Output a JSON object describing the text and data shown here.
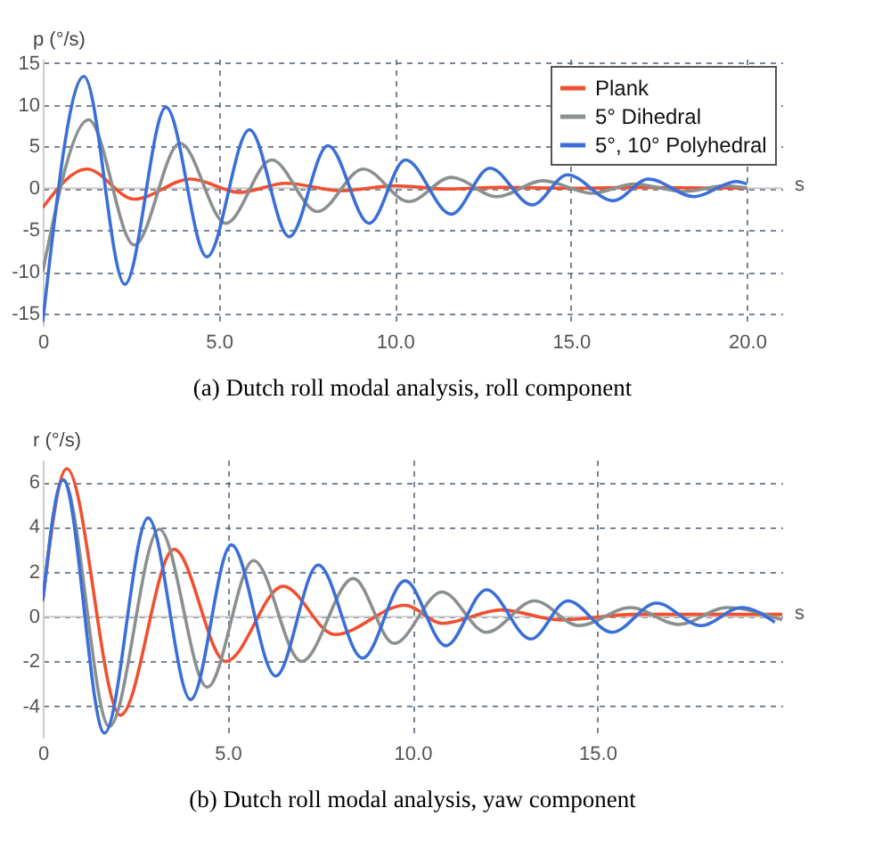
{
  "chart_data": [
    {
      "type": "line",
      "title": "(a) Dutch roll modal analysis, roll component",
      "xlabel": "s",
      "ylabel": "p (°/s)",
      "xlim": [
        0,
        21
      ],
      "xticks": [
        0,
        {
          "value": 5,
          "label": "5.0"
        },
        {
          "value": 10,
          "label": "10.0"
        },
        {
          "value": 15,
          "label": "15.0"
        },
        {
          "value": 20,
          "label": "20.0"
        }
      ],
      "ylim": [
        -16.5,
        15.5
      ],
      "yticks": [
        -15,
        -10,
        -5,
        0,
        5,
        10,
        15
      ],
      "grid": true,
      "legend": "top right",
      "series": [
        {
          "name": "Plank",
          "color": "#f05030",
          "x": [
            0,
            1.25,
            2.6,
            4.2,
            5.6,
            6.9,
            8.5,
            10,
            11.5,
            13,
            15,
            17,
            20
          ],
          "values": [
            -2.3,
            2.3,
            -1.3,
            1.1,
            -0.5,
            0.6,
            -0.3,
            0.3,
            -0.1,
            0.1,
            0,
            0.1,
            0
          ]
        },
        {
          "name": "5° Dihedral",
          "color": "#8a9090",
          "x": [
            0,
            1.3,
            2.6,
            3.9,
            5.2,
            6.5,
            7.8,
            9.1,
            10.4,
            11.6,
            12.9,
            14.2,
            15.6,
            16.8,
            18.2,
            19.4,
            20
          ],
          "values": [
            -10,
            8.2,
            -6.8,
            5.4,
            -4.2,
            3.4,
            -2.8,
            2.3,
            -1.6,
            1.3,
            -1,
            0.9,
            -0.6,
            0.5,
            -0.4,
            0.3,
            0
          ]
        },
        {
          "name": "5°, 10° Polyhedral",
          "color": "#3a6fd8",
          "x": [
            0,
            1.17,
            2.33,
            3.5,
            4.66,
            5.87,
            7,
            8.1,
            9.27,
            10.3,
            11.6,
            12.7,
            13.9,
            14.9,
            16.2,
            17.2,
            18.5,
            19.7,
            20
          ],
          "values": [
            -16,
            13.4,
            -11.5,
            9.7,
            -8.2,
            7,
            -5.8,
            5.1,
            -4.2,
            3.4,
            -3.1,
            2.4,
            -2,
            1.6,
            -1.5,
            1.1,
            -1,
            0.8,
            0.5
          ]
        }
      ]
    },
    {
      "type": "line",
      "title": "(b) Dutch roll modal analysis, yaw component",
      "xlabel": "s",
      "ylabel": "r (°/s)",
      "xlim": [
        0,
        20
      ],
      "xticks": [
        0,
        {
          "value": 5,
          "label": "5.0"
        },
        {
          "value": 10,
          "label": "10.0"
        },
        {
          "value": 15,
          "label": "15.0"
        }
      ],
      "ylim": [
        -5.4,
        7
      ],
      "yticks": [
        -4,
        -2,
        0,
        2,
        4,
        6
      ],
      "grid": true,
      "legend": "top right",
      "series": [
        {
          "name": "Plank",
          "color": "#f05030",
          "x": [
            0,
            0.65,
            2.1,
            3.55,
            4.95,
            6.5,
            7.9,
            9.8,
            10.8,
            12.4,
            14,
            16,
            18,
            20
          ],
          "values": [
            0.7,
            6.6,
            -4.4,
            3,
            -2,
            1.35,
            -0.8,
            0.5,
            -0.3,
            0.3,
            -0.15,
            0.1,
            0.1,
            0.1
          ]
        },
        {
          "name": "5° Dihedral",
          "color": "#8a9090",
          "x": [
            0,
            0.55,
            1.8,
            3.15,
            4.45,
            5.7,
            7,
            8.4,
            9.5,
            10.8,
            12,
            13.3,
            14.5,
            15.9,
            17.2,
            18.5,
            20
          ],
          "values": [
            0.7,
            6.1,
            -4.9,
            3.9,
            -3.15,
            2.5,
            -2,
            1.7,
            -1.2,
            1.1,
            -0.7,
            0.7,
            -0.4,
            0.4,
            -0.35,
            0.4,
            -0.15
          ]
        },
        {
          "name": "5°, 10° Polyhedral",
          "color": "#3a6fd8",
          "x": [
            0,
            0.55,
            1.67,
            2.85,
            4,
            5.1,
            6.3,
            7.45,
            8.65,
            9.8,
            10.9,
            12,
            13.2,
            14.2,
            15.4,
            16.6,
            17.8,
            18.9,
            19.8
          ],
          "values": [
            0.7,
            6.1,
            -5.2,
            4.4,
            -3.7,
            3.2,
            -2.65,
            2.3,
            -1.85,
            1.6,
            -1.3,
            1.2,
            -1,
            0.7,
            -0.7,
            0.6,
            -0.4,
            0.4,
            -0.25
          ]
        }
      ]
    }
  ]
}
